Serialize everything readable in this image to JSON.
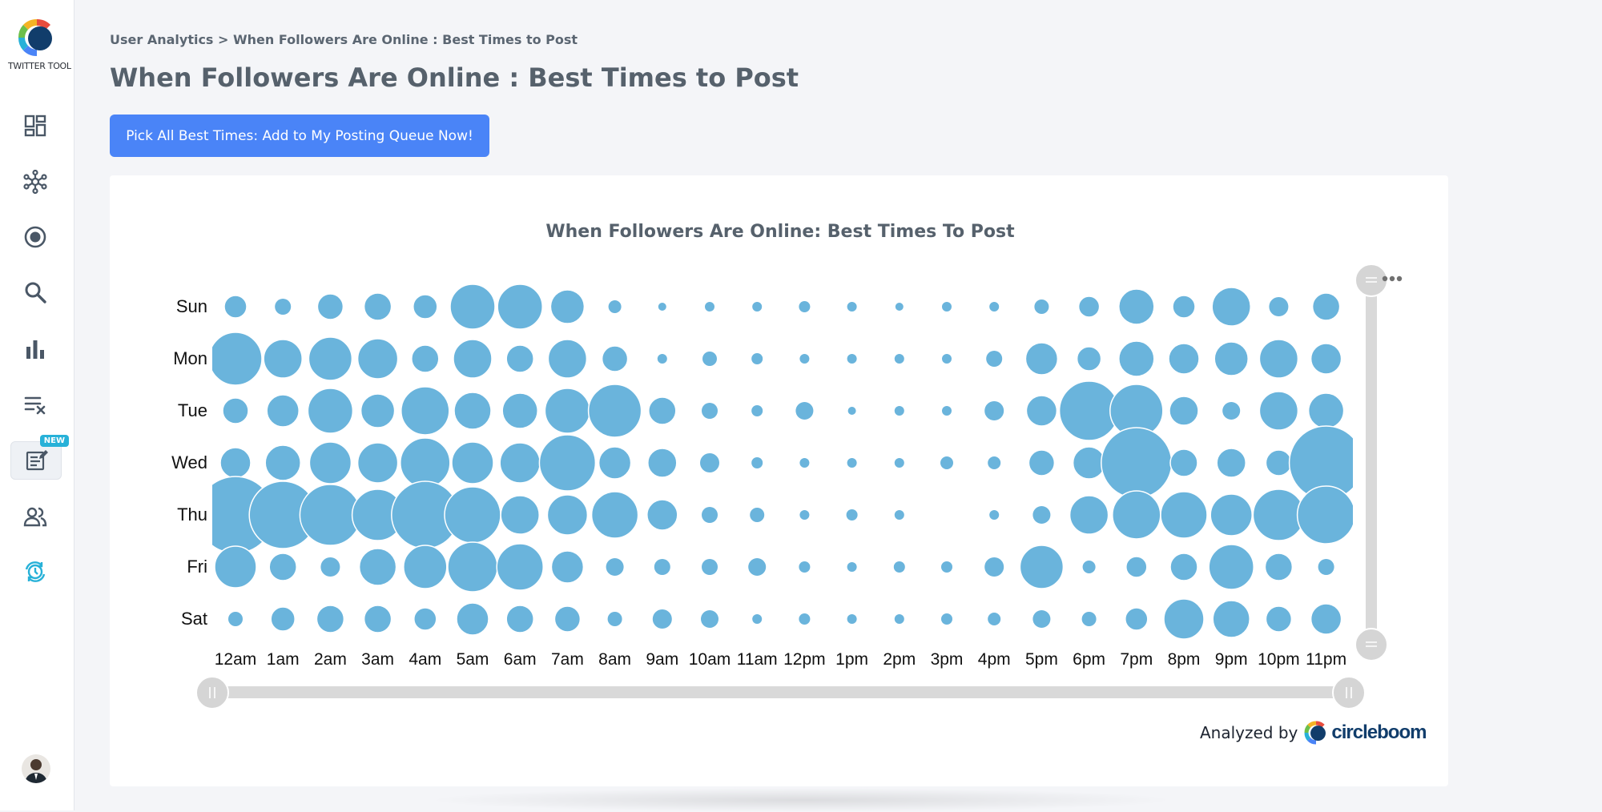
{
  "app": {
    "name": "TWITTER TOOL"
  },
  "breadcrumb": {
    "text": "User Analytics > When Followers Are Online : Best Times to Post"
  },
  "page": {
    "title": "When Followers Are Online : Best Times to Post"
  },
  "actions": {
    "pick_all": "Pick All Best Times: Add to My Posting Queue Now!"
  },
  "sidebar": {
    "items": [
      {
        "icon": "dashboard-icon"
      },
      {
        "icon": "network-icon"
      },
      {
        "icon": "target-icon"
      },
      {
        "icon": "search-icon"
      },
      {
        "icon": "bar-chart-icon"
      },
      {
        "icon": "list-remove-icon"
      },
      {
        "icon": "post-editor-icon",
        "badge": "NEW",
        "active": true
      },
      {
        "icon": "users-icon"
      },
      {
        "icon": "scheduler-icon"
      }
    ]
  },
  "attribution": {
    "label": "Analyzed by",
    "brand": "circleboom"
  },
  "colors": {
    "bubble": "#6ab4dc",
    "accent": "#4a84f7",
    "badge": "#27b1d8"
  },
  "chart_data": {
    "type": "scatter",
    "title": "When Followers Are Online: Best Times To Post",
    "days": [
      "Sun",
      "Mon",
      "Tue",
      "Wed",
      "Thu",
      "Fri",
      "Sat"
    ],
    "hours": [
      "12am",
      "1am",
      "2am",
      "3am",
      "4am",
      "5am",
      "6am",
      "7am",
      "8am",
      "9am",
      "10am",
      "11am",
      "12pm",
      "1pm",
      "2pm",
      "3pm",
      "4pm",
      "5pm",
      "6pm",
      "7pm",
      "8pm",
      "9pm",
      "10pm",
      "11pm"
    ],
    "values": [
      [
        14,
        10,
        16,
        17,
        15,
        28,
        28,
        21,
        8,
        5,
        6,
        6,
        7,
        6,
        5,
        6,
        6,
        9,
        13,
        22,
        14,
        24,
        12,
        17
      ],
      [
        33,
        24,
        27,
        25,
        17,
        24,
        17,
        24,
        16,
        6,
        9,
        7,
        6,
        6,
        6,
        6,
        10,
        20,
        15,
        22,
        19,
        21,
        24,
        19
      ],
      [
        16,
        20,
        28,
        21,
        30,
        23,
        22,
        28,
        33,
        17,
        10,
        7,
        11,
        5,
        6,
        6,
        12,
        19,
        37,
        33,
        18,
        11,
        24,
        22
      ],
      [
        19,
        22,
        26,
        25,
        31,
        26,
        25,
        35,
        20,
        18,
        12,
        7,
        6,
        6,
        6,
        8,
        8,
        16,
        20,
        44,
        17,
        18,
        16,
        46
      ],
      [
        48,
        42,
        38,
        32,
        42,
        35,
        24,
        25,
        29,
        19,
        10,
        9,
        6,
        7,
        6,
        0,
        6,
        11,
        24,
        30,
        29,
        26,
        32,
        36
      ],
      [
        26,
        17,
        12,
        23,
        27,
        31,
        29,
        20,
        11,
        10,
        10,
        11,
        7,
        6,
        7,
        7,
        12,
        27,
        8,
        13,
        17,
        28,
        17,
        10
      ],
      [
        9,
        15,
        17,
        17,
        14,
        20,
        17,
        16,
        9,
        12,
        11,
        6,
        7,
        6,
        6,
        7,
        8,
        11,
        9,
        14,
        25,
        23,
        16,
        19
      ]
    ],
    "value_unit": "relative activity (bubble radius)",
    "grid": false,
    "legend": "none"
  }
}
